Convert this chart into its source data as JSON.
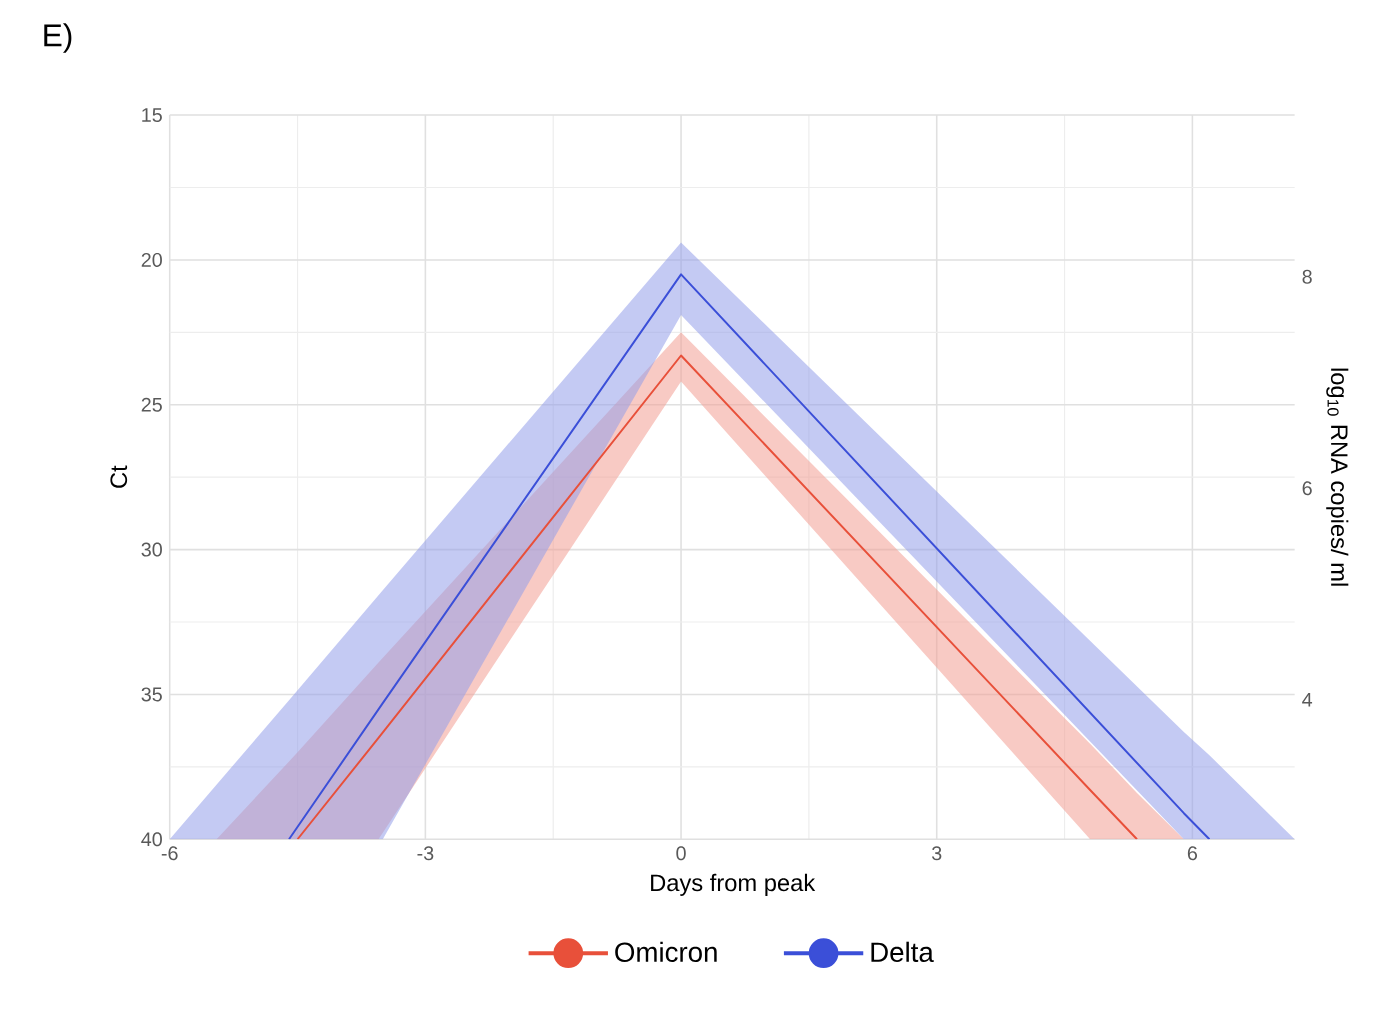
{
  "chart_data": {
    "type": "line",
    "title": "E)",
    "xlabel": "Days from peak",
    "ylabel": "Ct",
    "y2label": "log$_{10}$ RNA copies/ ml",
    "xlim": [
      -6,
      7.2
    ],
    "xticks": [
      -6,
      -3,
      0,
      3,
      6
    ],
    "ylim": [
      40,
      15
    ],
    "yticks": [
      15,
      20,
      25,
      30,
      35,
      40
    ],
    "y2lim": [
      2.68,
      9.53
    ],
    "y2ticks": [
      4,
      6,
      8
    ],
    "grid": true,
    "legend": "bottom",
    "series": [
      {
        "name": "Omicron",
        "color": "#e8503a",
        "x": [
          -5.45,
          -4.5,
          -3.55,
          0,
          4.8,
          5.35,
          5.9
        ],
        "values": [
          null,
          40,
          36.5,
          23.3,
          38.3,
          40,
          null
        ],
        "upper": [
          40,
          37.0,
          33.9,
          22.5,
          36.7,
          38.4,
          40
        ],
        "lower": [
          40,
          40,
          40,
          24.2,
          40,
          40,
          40
        ]
      },
      {
        "name": "Delta",
        "color": "#3b4fd8",
        "x": [
          -6,
          -4.6,
          -3.5,
          0,
          5.9,
          6.2,
          7.2
        ],
        "values": [
          null,
          40,
          35.3,
          20.5,
          39.1,
          40,
          null
        ],
        "upper": [
          40,
          35.2,
          31.4,
          19.4,
          36.3,
          37.1,
          40
        ],
        "lower": [
          40,
          40,
          40,
          21.9,
          40,
          40,
          40
        ]
      }
    ]
  }
}
